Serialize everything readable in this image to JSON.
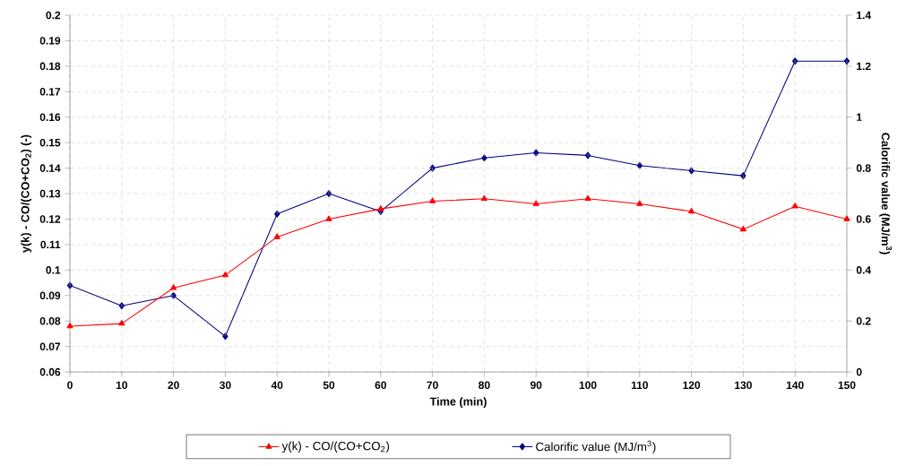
{
  "chart_data": {
    "type": "line",
    "xlabel": "Time (min)",
    "ylabel": "y(k)  - CO/(CO+CO$_{2}$)  (-)",
    "y2label": "Calorific value (MJ/m$^{3}$)",
    "x": [
      0,
      10,
      20,
      30,
      40,
      50,
      60,
      70,
      80,
      90,
      100,
      110,
      120,
      130,
      140,
      150
    ],
    "series": [
      {
        "name": "y(k) - CO/(CO+CO$_{2}$)",
        "color": "#ff0000",
        "marker": "triangle",
        "values": [
          0.078,
          0.079,
          0.093,
          0.098,
          0.113,
          0.12,
          0.124,
          0.127,
          0.128,
          0.126,
          0.128,
          0.126,
          0.123,
          0.116,
          0.125,
          0.12
        ]
      },
      {
        "name": "Calorific value (MJ/m$^{3}$)",
        "color": "#000080",
        "marker": "diamond",
        "axis": "y2",
        "values": [
          0.34,
          0.26,
          0.3,
          0.14,
          0.62,
          0.7,
          0.63,
          0.8,
          0.84,
          0.86,
          0.85,
          0.81,
          0.79,
          0.77,
          1.22,
          1.22
        ]
      }
    ],
    "xlim": [
      0,
      150
    ],
    "xticks": [
      0,
      10,
      20,
      30,
      40,
      50,
      60,
      70,
      80,
      90,
      100,
      110,
      120,
      130,
      140,
      150
    ],
    "ylim": [
      0.06,
      0.2
    ],
    "yticks": [
      0.06,
      0.07,
      0.08,
      0.09,
      0.1,
      0.11,
      0.12,
      0.13,
      0.14,
      0.15,
      0.16,
      0.17,
      0.18,
      0.19,
      0.2
    ],
    "y2lim": [
      0,
      1.4
    ],
    "y2ticks": [
      0,
      0.2,
      0.4,
      0.6,
      0.8,
      1,
      1.2,
      1.4
    ],
    "grid": true,
    "legend": "bottom"
  }
}
